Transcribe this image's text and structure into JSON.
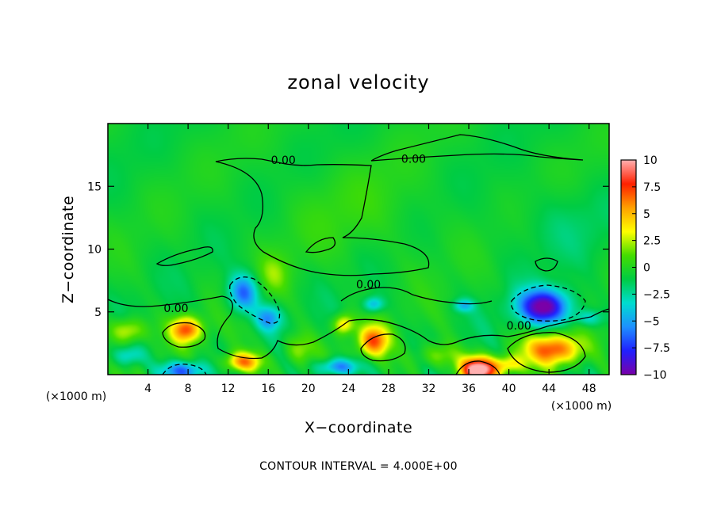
{
  "chart_data": {
    "type": "heatmap",
    "title": "zonal velocity",
    "xlabel": "X−coordinate",
    "ylabel": "Z−coordinate",
    "x_unit_label": "(×1000 m)",
    "x_unit_label_right": "(×1000 m)",
    "xlim": [
      0,
      50
    ],
    "ylim": [
      0,
      20
    ],
    "x_ticks": [
      4,
      8,
      12,
      16,
      20,
      24,
      28,
      32,
      36,
      40,
      44,
      48
    ],
    "y_ticks": [
      5,
      10,
      15
    ],
    "color_scale": {
      "min": -10,
      "max": 10,
      "tick_labels": [
        "10",
        "7.5",
        "5",
        "2.5",
        "0",
        "−2.5",
        "−5",
        "−7.5",
        "−10"
      ],
      "tick_values": [
        10,
        7.5,
        5,
        2.5,
        0,
        -2.5,
        -5,
        -7.5,
        -10
      ],
      "colors": [
        "#7a00a8",
        "#2020ff",
        "#1e90ff",
        "#00ddd0",
        "#00cc44",
        "#44dd00",
        "#ffff00",
        "#ffa000",
        "#ff2000",
        "#ffb0b0"
      ]
    },
    "contour_labels": [
      {
        "text": "0.00",
        "x": 17.5,
        "z": 17.1
      },
      {
        "text": "0.00",
        "x": 30.5,
        "z": 17.2
      },
      {
        "text": "0.00",
        "x": 26.0,
        "z": 7.2
      },
      {
        "text": "0.00",
        "x": 6.8,
        "z": 5.3
      },
      {
        "text": "0.00",
        "x": 41.0,
        "z": 3.9
      }
    ],
    "anomalies": [
      {
        "x": 43.5,
        "z": 5.4,
        "sx": 2.6,
        "sz": 1.4,
        "a": -9.5
      },
      {
        "x": 13.5,
        "z": 6.5,
        "sx": 1.5,
        "sz": 1.5,
        "a": -6.0
      },
      {
        "x": 16.0,
        "z": 4.5,
        "sx": 1.3,
        "sz": 1.0,
        "a": -4.5
      },
      {
        "x": 7.5,
        "z": 0.3,
        "sx": 2.2,
        "sz": 0.8,
        "a": -6.5
      },
      {
        "x": 23.0,
        "z": 0.6,
        "sx": 2.0,
        "sz": 0.7,
        "a": -6.0
      },
      {
        "x": 26.5,
        "z": 5.6,
        "sx": 1.0,
        "sz": 0.6,
        "a": -4.0
      },
      {
        "x": 35.5,
        "z": 5.5,
        "sx": 1.0,
        "sz": 0.5,
        "a": -3.5
      },
      {
        "x": 48.0,
        "z": 4.5,
        "sx": 1.5,
        "sz": 0.7,
        "a": -3.0
      },
      {
        "x": 7.8,
        "z": 3.6,
        "sx": 1.5,
        "sz": 1.0,
        "a": 7.5
      },
      {
        "x": 2.0,
        "z": 3.5,
        "sx": 1.8,
        "sz": 1.0,
        "a": 4.0
      },
      {
        "x": 13.5,
        "z": 1.0,
        "sx": 1.8,
        "sz": 0.8,
        "a": 7.0
      },
      {
        "x": 26.5,
        "z": 2.7,
        "sx": 1.5,
        "sz": 1.2,
        "a": 7.0
      },
      {
        "x": 23.5,
        "z": 4.0,
        "sx": 1.0,
        "sz": 0.8,
        "a": 5.0
      },
      {
        "x": 37.0,
        "z": 0.4,
        "sx": 1.8,
        "sz": 1.0,
        "a": 12.0
      },
      {
        "x": 44.5,
        "z": 2.0,
        "sx": 2.8,
        "sz": 1.2,
        "a": 7.5
      },
      {
        "x": 33.0,
        "z": 1.5,
        "sx": 2.0,
        "sz": 1.0,
        "a": 3.0
      },
      {
        "x": 19.0,
        "z": 2.0,
        "sx": 1.5,
        "sz": 1.2,
        "a": 3.0
      },
      {
        "x": 40.0,
        "z": 0.8,
        "sx": 1.5,
        "sz": 0.7,
        "a": 4.0
      },
      {
        "x": 16.5,
        "z": 8.0,
        "sx": 1.5,
        "sz": 1.5,
        "a": 2.0
      },
      {
        "x": 2.0,
        "z": 1.5,
        "sx": 1.5,
        "sz": 0.8,
        "a": -3.0
      },
      {
        "x": 25.0,
        "z": 13.0,
        "sx": 8.0,
        "sz": 4.0,
        "a": 0.8
      },
      {
        "x": 45.0,
        "z": 12.0,
        "sx": 6.0,
        "sz": 3.0,
        "a": -0.8
      }
    ]
  },
  "footer": {
    "contour_interval": "CONTOUR INTERVAL = 4.000E+00"
  }
}
